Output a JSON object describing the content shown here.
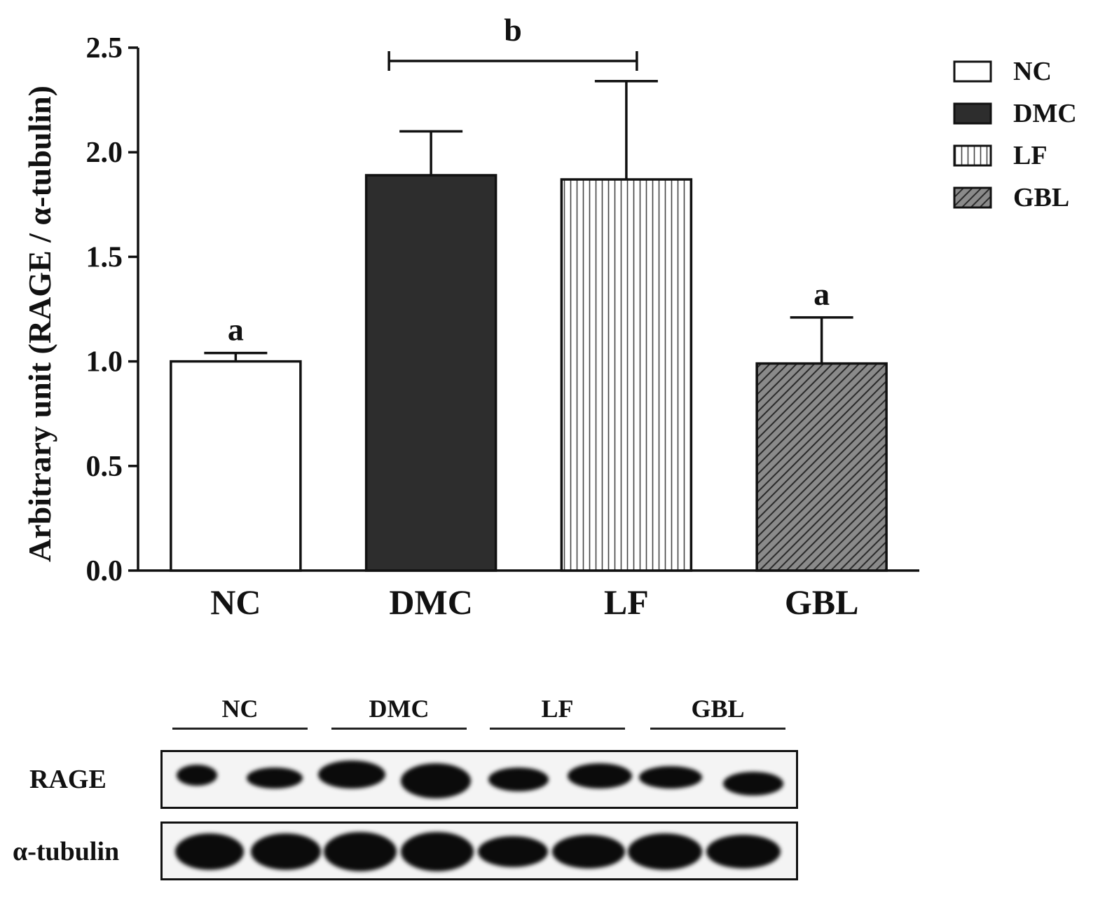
{
  "chart_data": {
    "type": "bar",
    "categories": [
      "NC",
      "DMC",
      "LF",
      "GBL"
    ],
    "values": [
      1.0,
      1.89,
      1.87,
      0.99
    ],
    "errors": [
      0.04,
      0.21,
      0.47,
      0.22
    ],
    "significance": [
      "a",
      "b",
      "b",
      "a"
    ],
    "bracket_label": "b",
    "ylabel": "Arbitrary unit (RAGE / α-tubulin)",
    "xlabel": "",
    "ylim": [
      0,
      2.5
    ],
    "yticks": [
      "0.0",
      "0.5",
      "1.0",
      "1.5",
      "2.0",
      "2.5"
    ],
    "legend": {
      "position": "top-right",
      "entries": [
        {
          "label": "NC",
          "fill": "white"
        },
        {
          "label": "DMC",
          "fill": "dark"
        },
        {
          "label": "LF",
          "fill": "vertical-stripes"
        },
        {
          "label": "GBL",
          "fill": "diagonal-hatch"
        }
      ]
    },
    "colors": {
      "dmc": "#2d2d2d",
      "gbl": "#6e6e6e",
      "outline": "#111111"
    }
  },
  "blot": {
    "groups": [
      "NC",
      "DMC",
      "LF",
      "GBL"
    ],
    "rows": [
      {
        "label": "RAGE"
      },
      {
        "label": "α-tubulin"
      }
    ]
  }
}
